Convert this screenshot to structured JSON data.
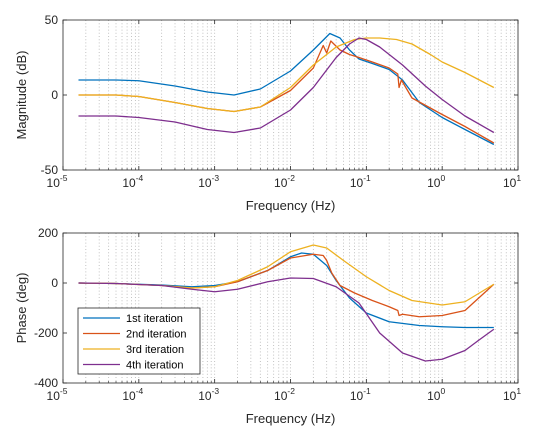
{
  "chart_data": [
    {
      "type": "line",
      "xlabel": "Frequency (Hz)",
      "ylabel": "Magnitude (dB)",
      "xscale": "log",
      "xlim": [
        1e-05,
        10
      ],
      "ylim": [
        -50,
        50
      ],
      "x_ticks": [
        {
          "base": "10",
          "exp": "-5"
        },
        {
          "base": "10",
          "exp": "-4"
        },
        {
          "base": "10",
          "exp": "-3"
        },
        {
          "base": "10",
          "exp": "-2"
        },
        {
          "base": "10",
          "exp": "-1"
        },
        {
          "base": "10",
          "exp": "0"
        },
        {
          "base": "10",
          "exp": "1"
        }
      ],
      "y_ticks": [
        "-50",
        "0",
        "50"
      ],
      "grid": "vertical minor dotted",
      "series": [
        {
          "color": "#0072BD",
          "points": [
            [
              1.6e-05,
              10
            ],
            [
              5e-05,
              10
            ],
            [
              0.0001,
              9.5
            ],
            [
              0.0003,
              6
            ],
            [
              0.0008,
              2
            ],
            [
              0.0018,
              0
            ],
            [
              0.004,
              4
            ],
            [
              0.01,
              16
            ],
            [
              0.02,
              30
            ],
            [
              0.033,
              41
            ],
            [
              0.045,
              38
            ],
            [
              0.06,
              30
            ],
            [
              0.08,
              24
            ],
            [
              0.12,
              21
            ],
            [
              0.2,
              17
            ],
            [
              0.3,
              10
            ],
            [
              0.5,
              -5
            ],
            [
              1,
              -15
            ],
            [
              2,
              -23
            ],
            [
              4.8,
              -33
            ]
          ]
        },
        {
          "color": "#D95319",
          "points": [
            [
              1.6e-05,
              0
            ],
            [
              5e-05,
              0
            ],
            [
              0.0001,
              -1
            ],
            [
              0.0003,
              -5
            ],
            [
              0.0008,
              -9
            ],
            [
              0.0018,
              -11
            ],
            [
              0.004,
              -8
            ],
            [
              0.01,
              3
            ],
            [
              0.02,
              18
            ],
            [
              0.027,
              33
            ],
            [
              0.03,
              28
            ],
            [
              0.034,
              36
            ],
            [
              0.045,
              30
            ],
            [
              0.06,
              27
            ],
            [
              0.08,
              25
            ],
            [
              0.12,
              22
            ],
            [
              0.2,
              18
            ],
            [
              0.26,
              14
            ],
            [
              0.27,
              5
            ],
            [
              0.29,
              10
            ],
            [
              0.4,
              -2
            ],
            [
              1,
              -13
            ],
            [
              2,
              -21
            ],
            [
              4.8,
              -32
            ]
          ]
        },
        {
          "color": "#EDB120",
          "points": [
            [
              1.6e-05,
              0
            ],
            [
              5e-05,
              0
            ],
            [
              0.0001,
              -1
            ],
            [
              0.0003,
              -5
            ],
            [
              0.0008,
              -9
            ],
            [
              0.0018,
              -11
            ],
            [
              0.004,
              -8
            ],
            [
              0.01,
              5
            ],
            [
              0.02,
              20
            ],
            [
              0.04,
              32
            ],
            [
              0.07,
              37
            ],
            [
              0.1,
              38
            ],
            [
              0.15,
              38
            ],
            [
              0.25,
              37
            ],
            [
              0.4,
              34
            ],
            [
              0.7,
              27
            ],
            [
              1,
              22
            ],
            [
              2,
              15
            ],
            [
              4.8,
              5
            ]
          ]
        },
        {
          "color": "#7E2F8E",
          "points": [
            [
              1.6e-05,
              -14
            ],
            [
              5e-05,
              -14
            ],
            [
              0.0001,
              -15
            ],
            [
              0.0003,
              -18
            ],
            [
              0.0008,
              -23
            ],
            [
              0.0018,
              -25
            ],
            [
              0.004,
              -22
            ],
            [
              0.01,
              -10
            ],
            [
              0.02,
              5
            ],
            [
              0.04,
              25
            ],
            [
              0.06,
              34
            ],
            [
              0.08,
              38
            ],
            [
              0.1,
              37
            ],
            [
              0.15,
              32
            ],
            [
              0.3,
              20
            ],
            [
              0.6,
              6
            ],
            [
              1,
              -3
            ],
            [
              2,
              -14
            ],
            [
              4.8,
              -25
            ]
          ]
        }
      ]
    },
    {
      "type": "line",
      "xlabel": "Frequency (Hz)",
      "ylabel": "Phase (deg)",
      "xscale": "log",
      "xlim": [
        1e-05,
        10
      ],
      "ylim": [
        -400,
        200
      ],
      "x_ticks": [
        {
          "base": "10",
          "exp": "-5"
        },
        {
          "base": "10",
          "exp": "-4"
        },
        {
          "base": "10",
          "exp": "-3"
        },
        {
          "base": "10",
          "exp": "-2"
        },
        {
          "base": "10",
          "exp": "-1"
        },
        {
          "base": "10",
          "exp": "0"
        },
        {
          "base": "10",
          "exp": "1"
        }
      ],
      "y_ticks": [
        "-400",
        "-200",
        "0",
        "200"
      ],
      "grid": "vertical minor dotted",
      "legend": "bottom-left",
      "series": [
        {
          "name": "1st iteration",
          "color": "#0072BD",
          "points": [
            [
              1.6e-05,
              0
            ],
            [
              5e-05,
              -2
            ],
            [
              0.0002,
              -8
            ],
            [
              0.0005,
              -15
            ],
            [
              0.001,
              -10
            ],
            [
              0.002,
              5
            ],
            [
              0.005,
              50
            ],
            [
              0.01,
              105
            ],
            [
              0.014,
              120
            ],
            [
              0.02,
              115
            ],
            [
              0.03,
              70
            ],
            [
              0.04,
              10
            ],
            [
              0.06,
              -60
            ],
            [
              0.1,
              -120
            ],
            [
              0.2,
              -155
            ],
            [
              0.5,
              -170
            ],
            [
              1,
              -175
            ],
            [
              2,
              -178
            ],
            [
              4.8,
              -178
            ]
          ]
        },
        {
          "name": "2nd iteration",
          "color": "#D95319",
          "points": [
            [
              1.6e-05,
              0
            ],
            [
              5e-05,
              -2
            ],
            [
              0.0002,
              -10
            ],
            [
              0.0005,
              -20
            ],
            [
              0.001,
              -15
            ],
            [
              0.002,
              5
            ],
            [
              0.005,
              50
            ],
            [
              0.01,
              100
            ],
            [
              0.02,
              115
            ],
            [
              0.027,
              110
            ],
            [
              0.03,
              90
            ],
            [
              0.035,
              40
            ],
            [
              0.045,
              -10
            ],
            [
              0.07,
              -40
            ],
            [
              0.12,
              -70
            ],
            [
              0.2,
              -95
            ],
            [
              0.26,
              -110
            ],
            [
              0.27,
              -130
            ],
            [
              0.3,
              -125
            ],
            [
              0.5,
              -135
            ],
            [
              1,
              -130
            ],
            [
              2,
              -110
            ],
            [
              4.8,
              -5
            ]
          ]
        },
        {
          "name": "3rd iteration",
          "color": "#EDB120",
          "points": [
            [
              1.6e-05,
              0
            ],
            [
              5e-05,
              -2
            ],
            [
              0.0002,
              -10
            ],
            [
              0.0005,
              -20
            ],
            [
              0.001,
              -15
            ],
            [
              0.002,
              10
            ],
            [
              0.005,
              65
            ],
            [
              0.01,
              125
            ],
            [
              0.02,
              152
            ],
            [
              0.03,
              140
            ],
            [
              0.05,
              90
            ],
            [
              0.1,
              25
            ],
            [
              0.2,
              -30
            ],
            [
              0.4,
              -70
            ],
            [
              1,
              -88
            ],
            [
              2,
              -75
            ],
            [
              4.8,
              -5
            ]
          ]
        },
        {
          "name": "4th iteration",
          "color": "#7E2F8E",
          "points": [
            [
              1.6e-05,
              0
            ],
            [
              5e-05,
              -2
            ],
            [
              0.0002,
              -10
            ],
            [
              0.0005,
              -25
            ],
            [
              0.001,
              -35
            ],
            [
              0.002,
              -25
            ],
            [
              0.005,
              5
            ],
            [
              0.01,
              20
            ],
            [
              0.02,
              18
            ],
            [
              0.04,
              -15
            ],
            [
              0.08,
              -80
            ],
            [
              0.15,
              -200
            ],
            [
              0.3,
              -280
            ],
            [
              0.6,
              -312
            ],
            [
              1,
              -305
            ],
            [
              2,
              -270
            ],
            [
              3,
              -230
            ],
            [
              4.8,
              -185
            ]
          ]
        }
      ]
    }
  ]
}
